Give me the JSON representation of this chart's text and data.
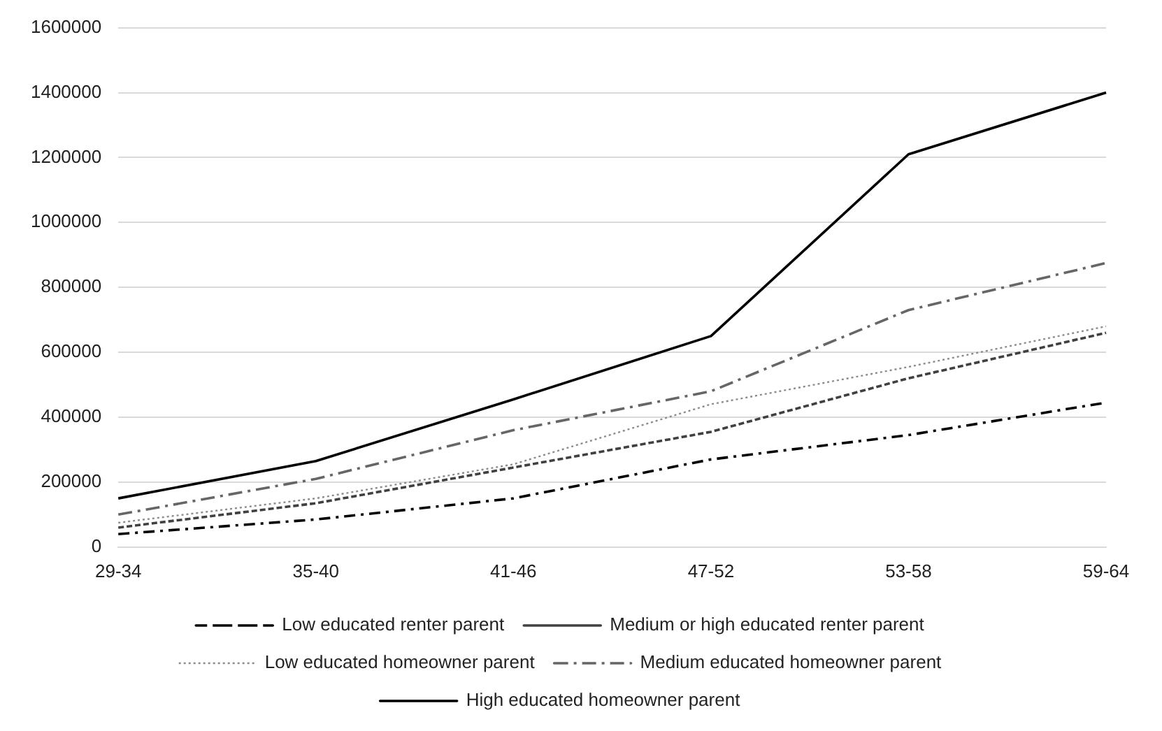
{
  "chart_data": {
    "type": "line",
    "categories": [
      "29-34",
      "35-40",
      "41-46",
      "47-52",
      "53-58",
      "59-64"
    ],
    "ylim": [
      0,
      1600000
    ],
    "yticks": [
      0,
      200000,
      400000,
      600000,
      800000,
      1000000,
      1200000,
      1400000,
      1600000
    ],
    "grid": "y",
    "legend": "bottom",
    "marker": "none",
    "series": [
      {
        "name": "Low educated renter parent",
        "color": "#000000",
        "line_style": "dashed",
        "values": [
          40000,
          85000,
          150000,
          270000,
          345000,
          445000
        ]
      },
      {
        "name": "Medium or high educated renter parent",
        "color": "#404040",
        "line_style": "dashed",
        "values": [
          60000,
          135000,
          245000,
          355000,
          520000,
          660000
        ]
      },
      {
        "name": "Low educated homeowner parent",
        "color": "#8c8c8c",
        "line_style": "dotted",
        "values": [
          75000,
          150000,
          255000,
          440000,
          555000,
          680000
        ]
      },
      {
        "name": "Medium educated homeowner parent",
        "color": "#666666",
        "line_style": "dashed",
        "values": [
          100000,
          210000,
          360000,
          480000,
          730000,
          875000
        ]
      },
      {
        "name": "High educated homeowner parent",
        "color": "#000000",
        "line_style": "solid",
        "values": [
          150000,
          265000,
          455000,
          650000,
          1210000,
          1400000
        ]
      }
    ]
  }
}
